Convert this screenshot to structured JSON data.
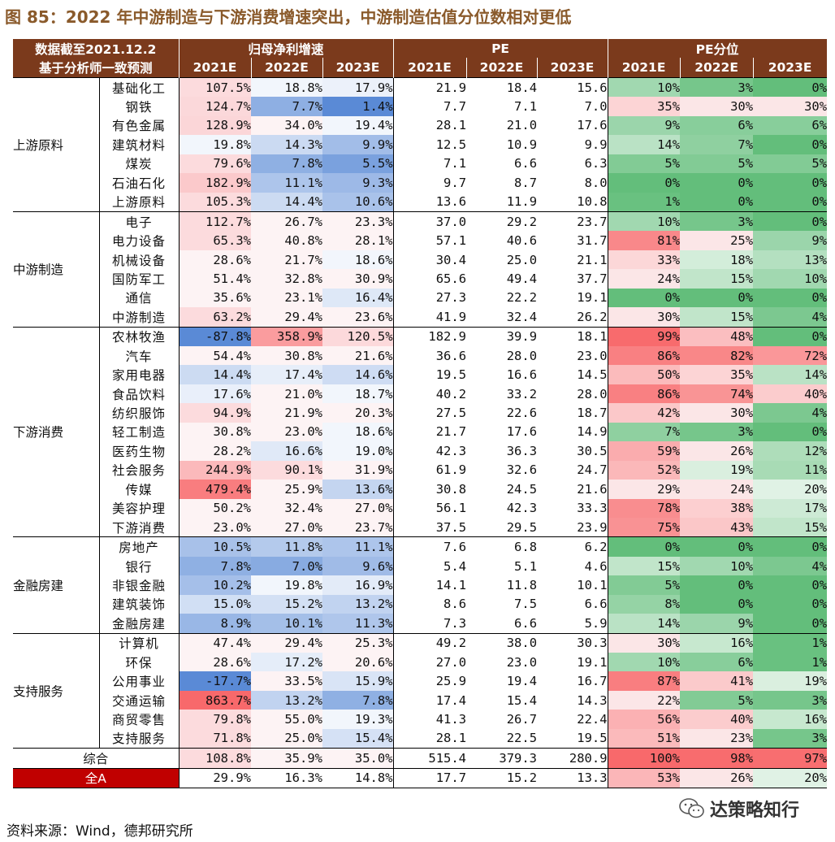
{
  "title": "图 85：2022 年中游制造与下游消费增速突出，中游制造估值分位数相对更低",
  "header": {
    "corner_top": "数据截至2021.12.2",
    "corner_bottom": "基于分析师一致预测",
    "growth": "归母净利增速",
    "pe": "PE",
    "pe_pct": "PE分位",
    "years": [
      "2021E",
      "2022E",
      "2023E"
    ]
  },
  "colors": {
    "header_bg": "#7b3a1c",
    "title": "#8a5a2b",
    "quanA_bg": "#c00000",
    "growth_high": "#f8696b",
    "growth_low": "#5a8ad6",
    "pct_high": "#f8696b",
    "pct_low": "#63be7b"
  },
  "groups": [
    {
      "name": "上游原料",
      "rows": [
        {
          "label": "基础化工",
          "growth": [
            "107.5%",
            "18.8%",
            "17.9%"
          ],
          "pe": [
            "21.9",
            "18.4",
            "15.6"
          ],
          "pct": [
            "10%",
            "3%",
            "0%"
          ]
        },
        {
          "label": "钢铁",
          "growth": [
            "124.7%",
            "7.7%",
            "1.4%"
          ],
          "pe": [
            "7.7",
            "7.1",
            "7.0"
          ],
          "pct": [
            "35%",
            "30%",
            "30%"
          ]
        },
        {
          "label": "有色金属",
          "growth": [
            "128.9%",
            "34.0%",
            "19.4%"
          ],
          "pe": [
            "28.1",
            "21.0",
            "17.6"
          ],
          "pct": [
            "9%",
            "6%",
            "6%"
          ]
        },
        {
          "label": "建筑材料",
          "growth": [
            "19.8%",
            "14.3%",
            "9.9%"
          ],
          "pe": [
            "12.5",
            "10.9",
            "9.9"
          ],
          "pct": [
            "14%",
            "7%",
            "0%"
          ]
        },
        {
          "label": "煤炭",
          "growth": [
            "79.6%",
            "7.8%",
            "5.5%"
          ],
          "pe": [
            "7.1",
            "6.6",
            "6.3"
          ],
          "pct": [
            "5%",
            "5%",
            "5%"
          ]
        },
        {
          "label": "石油石化",
          "growth": [
            "182.9%",
            "11.1%",
            "9.3%"
          ],
          "pe": [
            "9.7",
            "8.7",
            "8.0"
          ],
          "pct": [
            "0%",
            "0%",
            "0%"
          ]
        },
        {
          "label": "上游原料",
          "growth": [
            "105.3%",
            "14.4%",
            "10.6%"
          ],
          "pe": [
            "13.6",
            "11.9",
            "10.8"
          ],
          "pct": [
            "1%",
            "0%",
            "0%"
          ]
        }
      ]
    },
    {
      "name": "中游制造",
      "rows": [
        {
          "label": "电子",
          "growth": [
            "112.7%",
            "26.7%",
            "23.3%"
          ],
          "pe": [
            "37.0",
            "29.2",
            "23.7"
          ],
          "pct": [
            "10%",
            "3%",
            "0%"
          ]
        },
        {
          "label": "电力设备",
          "growth": [
            "65.3%",
            "40.8%",
            "28.1%"
          ],
          "pe": [
            "57.1",
            "40.6",
            "31.7"
          ],
          "pct": [
            "81%",
            "25%",
            "9%"
          ]
        },
        {
          "label": "机械设备",
          "growth": [
            "28.6%",
            "21.7%",
            "18.6%"
          ],
          "pe": [
            "30.4",
            "25.0",
            "21.1"
          ],
          "pct": [
            "33%",
            "18%",
            "13%"
          ]
        },
        {
          "label": "国防军工",
          "growth": [
            "51.4%",
            "32.8%",
            "30.9%"
          ],
          "pe": [
            "65.6",
            "49.4",
            "37.7"
          ],
          "pct": [
            "24%",
            "15%",
            "10%"
          ]
        },
        {
          "label": "通信",
          "growth": [
            "35.6%",
            "23.1%",
            "16.4%"
          ],
          "pe": [
            "27.3",
            "22.2",
            "19.1"
          ],
          "pct": [
            "0%",
            "0%",
            "0%"
          ]
        },
        {
          "label": "中游制造",
          "growth": [
            "63.2%",
            "29.4%",
            "23.6%"
          ],
          "pe": [
            "41.9",
            "32.4",
            "26.2"
          ],
          "pct": [
            "30%",
            "15%",
            "4%"
          ]
        }
      ]
    },
    {
      "name": "下游消费",
      "rows": [
        {
          "label": "农林牧渔",
          "growth": [
            "-87.8%",
            "358.9%",
            "120.5%"
          ],
          "pe": [
            "182.9",
            "39.9",
            "18.1"
          ],
          "pct": [
            "99%",
            "48%",
            "0%"
          ]
        },
        {
          "label": "汽车",
          "growth": [
            "54.4%",
            "30.8%",
            "21.6%"
          ],
          "pe": [
            "36.6",
            "28.0",
            "23.0"
          ],
          "pct": [
            "86%",
            "82%",
            "72%"
          ]
        },
        {
          "label": "家用电器",
          "growth": [
            "14.4%",
            "17.4%",
            "14.6%"
          ],
          "pe": [
            "19.5",
            "16.6",
            "14.5"
          ],
          "pct": [
            "50%",
            "35%",
            "14%"
          ]
        },
        {
          "label": "食品饮料",
          "growth": [
            "17.6%",
            "21.0%",
            "18.7%"
          ],
          "pe": [
            "40.2",
            "33.2",
            "28.0"
          ],
          "pct": [
            "86%",
            "74%",
            "40%"
          ]
        },
        {
          "label": "纺织服饰",
          "growth": [
            "94.9%",
            "21.9%",
            "20.3%"
          ],
          "pe": [
            "27.5",
            "22.6",
            "18.7"
          ],
          "pct": [
            "42%",
            "30%",
            "4%"
          ]
        },
        {
          "label": "轻工制造",
          "growth": [
            "30.8%",
            "23.0%",
            "18.6%"
          ],
          "pe": [
            "21.7",
            "17.6",
            "14.9"
          ],
          "pct": [
            "7%",
            "3%",
            "0%"
          ]
        },
        {
          "label": "医药生物",
          "growth": [
            "28.2%",
            "16.6%",
            "19.0%"
          ],
          "pe": [
            "42.3",
            "36.3",
            "30.5"
          ],
          "pct": [
            "59%",
            "26%",
            "12%"
          ]
        },
        {
          "label": "社会服务",
          "growth": [
            "244.9%",
            "90.1%",
            "31.9%"
          ],
          "pe": [
            "61.9",
            "32.6",
            "24.7"
          ],
          "pct": [
            "52%",
            "19%",
            "11%"
          ]
        },
        {
          "label": "传媒",
          "growth": [
            "479.4%",
            "25.9%",
            "13.6%"
          ],
          "pe": [
            "30.8",
            "24.5",
            "21.6"
          ],
          "pct": [
            "29%",
            "24%",
            "20%"
          ]
        },
        {
          "label": "美容护理",
          "growth": [
            "50.2%",
            "32.4%",
            "27.0%"
          ],
          "pe": [
            "56.1",
            "42.3",
            "33.3"
          ],
          "pct": [
            "78%",
            "38%",
            "17%"
          ]
        },
        {
          "label": "下游消费",
          "growth": [
            "23.0%",
            "27.0%",
            "23.7%"
          ],
          "pe": [
            "37.5",
            "29.5",
            "23.9"
          ],
          "pct": [
            "75%",
            "43%",
            "15%"
          ]
        }
      ]
    },
    {
      "name": "金融房建",
      "rows": [
        {
          "label": "房地产",
          "growth": [
            "10.5%",
            "11.8%",
            "11.1%"
          ],
          "pe": [
            "7.6",
            "6.8",
            "6.2"
          ],
          "pct": [
            "0%",
            "0%",
            "0%"
          ]
        },
        {
          "label": "银行",
          "growth": [
            "7.8%",
            "7.0%",
            "9.6%"
          ],
          "pe": [
            "5.4",
            "5.1",
            "4.6"
          ],
          "pct": [
            "15%",
            "10%",
            "4%"
          ]
        },
        {
          "label": "非银金融",
          "growth": [
            "10.2%",
            "19.8%",
            "16.9%"
          ],
          "pe": [
            "14.1",
            "11.8",
            "10.1"
          ],
          "pct": [
            "5%",
            "0%",
            "0%"
          ]
        },
        {
          "label": "建筑装饰",
          "growth": [
            "15.0%",
            "15.2%",
            "13.2%"
          ],
          "pe": [
            "8.6",
            "7.5",
            "6.6"
          ],
          "pct": [
            "8%",
            "0%",
            "0%"
          ]
        },
        {
          "label": "金融房建",
          "growth": [
            "8.9%",
            "10.1%",
            "11.3%"
          ],
          "pe": [
            "7.3",
            "6.6",
            "5.9"
          ],
          "pct": [
            "14%",
            "9%",
            "0%"
          ]
        }
      ]
    },
    {
      "name": "支持服务",
      "rows": [
        {
          "label": "计算机",
          "growth": [
            "47.4%",
            "29.4%",
            "25.3%"
          ],
          "pe": [
            "49.2",
            "38.0",
            "30.3"
          ],
          "pct": [
            "30%",
            "16%",
            "1%"
          ]
        },
        {
          "label": "环保",
          "growth": [
            "28.6%",
            "17.2%",
            "20.6%"
          ],
          "pe": [
            "27.0",
            "23.0",
            "19.1"
          ],
          "pct": [
            "10%",
            "6%",
            "1%"
          ]
        },
        {
          "label": "公用事业",
          "growth": [
            "-17.7%",
            "33.5%",
            "15.9%"
          ],
          "pe": [
            "25.9",
            "19.4",
            "16.7"
          ],
          "pct": [
            "87%",
            "41%",
            "19%"
          ]
        },
        {
          "label": "交通运输",
          "growth": [
            "863.7%",
            "13.2%",
            "7.8%"
          ],
          "pe": [
            "17.4",
            "15.4",
            "14.3"
          ],
          "pct": [
            "22%",
            "5%",
            "3%"
          ]
        },
        {
          "label": "商贸零售",
          "growth": [
            "79.8%",
            "55.0%",
            "19.3%"
          ],
          "pe": [
            "41.3",
            "26.7",
            "22.4"
          ],
          "pct": [
            "56%",
            "40%",
            "16%"
          ]
        },
        {
          "label": "支持服务",
          "growth": [
            "71.8%",
            "25.0%",
            "15.4%"
          ],
          "pe": [
            "28.1",
            "22.5",
            "19.5"
          ],
          "pct": [
            "51%",
            "23%",
            "3%"
          ]
        }
      ]
    }
  ],
  "totals": [
    {
      "label": "综合",
      "growth": [
        "108.8%",
        "35.9%",
        "35.0%"
      ],
      "pe": [
        "515.4",
        "379.3",
        "280.9"
      ],
      "pct": [
        "100%",
        "98%",
        "97%"
      ]
    },
    {
      "label": "全A",
      "growth": [
        "29.9%",
        "16.3%",
        "14.8%"
      ],
      "pe": [
        "17.7",
        "15.2",
        "13.3"
      ],
      "pct": [
        "53%",
        "26%",
        "20%"
      ]
    }
  ],
  "source": "资料来源：Wind，德邦研究所",
  "watermark": "达策略知行"
}
